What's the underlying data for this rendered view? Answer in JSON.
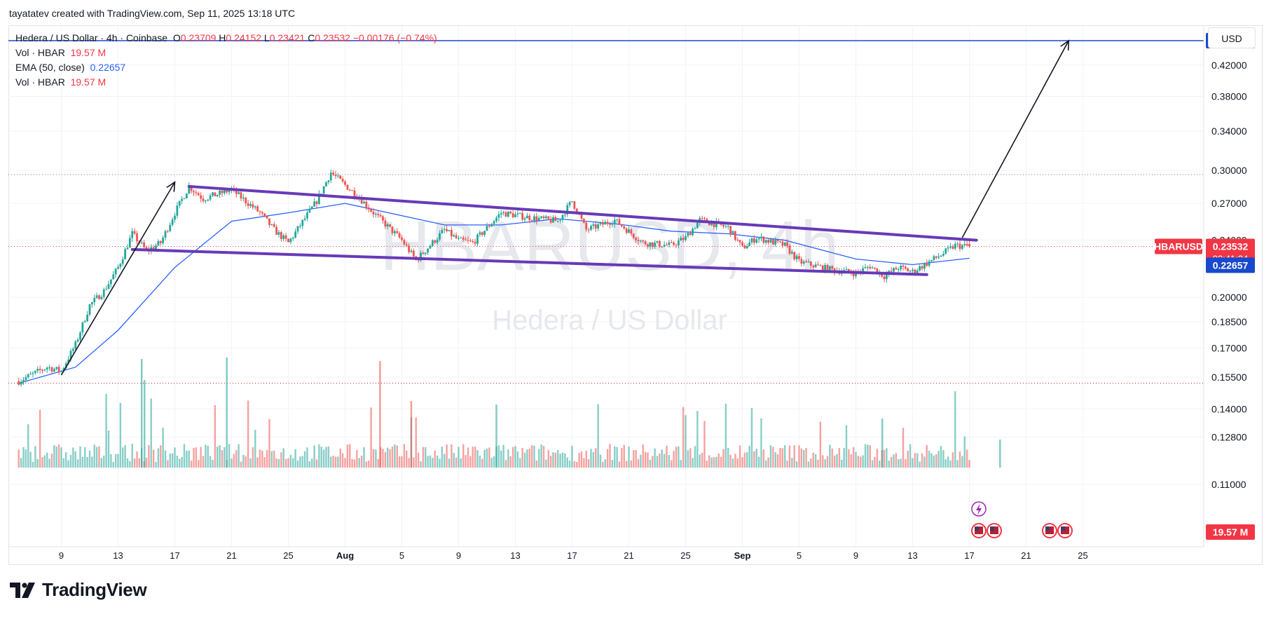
{
  "header": {
    "credit": "tayatatev created with TradingView.com, Sep 11, 2025 13:18 UTC"
  },
  "legend": {
    "symbol": "Hedera / US Dollar · 4h · Coinbase",
    "o_label": "O",
    "o_value": "0.23709",
    "h_label": "H",
    "h_value": "0.24152",
    "l_label": "L",
    "l_value": "0.23421",
    "c_label": "C",
    "c_value": "0.23532",
    "change": "−0.00176 (−0.74%)",
    "vol_label": "Vol · HBAR",
    "vol_value": "19.57 M",
    "ema_label": "EMA (50, close)",
    "ema_value": "0.22657",
    "vol2_label": "Vol · HBAR",
    "vol2_value": "19.57 M"
  },
  "currency_button": "USD",
  "watermark": {
    "symbol": "HBARUSD, 4h",
    "name": "Hedera / US Dollar"
  },
  "price_tags": {
    "target": "0.45411",
    "symbol": "HBARUSD",
    "last": "0.23532",
    "countdown": "02:41:24",
    "ema": "0.22657",
    "volume": "19.57 M"
  },
  "brand": {
    "name": "TradingView"
  },
  "colors": {
    "up": "#26a69a",
    "down": "#ef5350",
    "ema": "#2962ff",
    "channel": "#673ab7",
    "arrow": "#131722",
    "target_line": "#1848cc",
    "vol_up": "#26a69a",
    "vol_down": "#ef5350"
  },
  "chart_data": {
    "type": "candlestick",
    "symbol": "HBARUSD",
    "timeframe": "4h",
    "y_scale": "log",
    "y_ticks": [
      "0.42000",
      "0.38000",
      "0.34000",
      "0.30000",
      "0.27000",
      "0.24000",
      "0.20000",
      "0.18500",
      "0.17000",
      "0.15500",
      "0.14000",
      "0.12800",
      "0.11000"
    ],
    "x_ticks": [
      "9",
      "13",
      "17",
      "21",
      "25",
      "Aug",
      "5",
      "9",
      "13",
      "17",
      "21",
      "25",
      "Sep",
      "5",
      "9",
      "13",
      "17",
      "21",
      "25"
    ],
    "price_path": [
      {
        "date": "Jul 6",
        "close": 0.153
      },
      {
        "date": "Jul 8",
        "close": 0.16
      },
      {
        "date": "Jul 9",
        "close": 0.158
      },
      {
        "date": "Jul 10",
        "close": 0.172
      },
      {
        "date": "Jul 11",
        "close": 0.195
      },
      {
        "date": "Jul 12",
        "close": 0.204
      },
      {
        "date": "Jul 13",
        "close": 0.22
      },
      {
        "date": "Jul 14",
        "close": 0.245
      },
      {
        "date": "Jul 15",
        "close": 0.232
      },
      {
        "date": "Jul 16",
        "close": 0.238
      },
      {
        "date": "Jul 17",
        "close": 0.262
      },
      {
        "date": "Jul 18",
        "close": 0.285
      },
      {
        "date": "Jul 19",
        "close": 0.274
      },
      {
        "date": "Jul 21",
        "close": 0.282
      },
      {
        "date": "Jul 23",
        "close": 0.262
      },
      {
        "date": "Jul 24",
        "close": 0.248
      },
      {
        "date": "Jul 25",
        "close": 0.238
      },
      {
        "date": "Jul 27",
        "close": 0.272
      },
      {
        "date": "Jul 28",
        "close": 0.298
      },
      {
        "date": "Jul 30",
        "close": 0.275
      },
      {
        "date": "Jul 31",
        "close": 0.262
      },
      {
        "date": "Aug 2",
        "close": 0.24
      },
      {
        "date": "Aug 3",
        "close": 0.225
      },
      {
        "date": "Aug 5",
        "close": 0.248
      },
      {
        "date": "Aug 6",
        "close": 0.24
      },
      {
        "date": "Aug 7",
        "close": 0.238
      },
      {
        "date": "Aug 9",
        "close": 0.262
      },
      {
        "date": "Aug 11",
        "close": 0.258
      },
      {
        "date": "Aug 13",
        "close": 0.255
      },
      {
        "date": "Aug 14",
        "close": 0.272
      },
      {
        "date": "Aug 15",
        "close": 0.248
      },
      {
        "date": "Aug 17",
        "close": 0.256
      },
      {
        "date": "Aug 19",
        "close": 0.238
      },
      {
        "date": "Aug 21",
        "close": 0.236
      },
      {
        "date": "Aug 22",
        "close": 0.242
      },
      {
        "date": "Aug 23",
        "close": 0.256
      },
      {
        "date": "Aug 25",
        "close": 0.25
      },
      {
        "date": "Aug 26",
        "close": 0.234
      },
      {
        "date": "Aug 27",
        "close": 0.242
      },
      {
        "date": "Aug 29",
        "close": 0.236
      },
      {
        "date": "Aug 30",
        "close": 0.224
      },
      {
        "date": "Sep 1",
        "close": 0.219
      },
      {
        "date": "Sep 3",
        "close": 0.216
      },
      {
        "date": "Sep 4",
        "close": 0.221
      },
      {
        "date": "Sep 5",
        "close": 0.214
      },
      {
        "date": "Sep 6",
        "close": 0.22
      },
      {
        "date": "Sep 7",
        "close": 0.217
      },
      {
        "date": "Sep 8",
        "close": 0.223
      },
      {
        "date": "Sep 9",
        "close": 0.229
      },
      {
        "date": "Sep 10",
        "close": 0.236
      },
      {
        "date": "Sep 11",
        "close": 0.23532
      }
    ],
    "ema_50": [
      {
        "date": "Jul 6",
        "value": 0.152
      },
      {
        "date": "Jul 10",
        "value": 0.16
      },
      {
        "date": "Jul 13",
        "value": 0.18
      },
      {
        "date": "Jul 17",
        "value": 0.22
      },
      {
        "date": "Jul 21",
        "value": 0.255
      },
      {
        "date": "Jul 25",
        "value": 0.262
      },
      {
        "date": "Jul 29",
        "value": 0.27
      },
      {
        "date": "Aug 5",
        "value": 0.252
      },
      {
        "date": "Aug 9",
        "value": 0.252
      },
      {
        "date": "Aug 13",
        "value": 0.257
      },
      {
        "date": "Aug 17",
        "value": 0.253
      },
      {
        "date": "Aug 21",
        "value": 0.247
      },
      {
        "date": "Aug 25",
        "value": 0.245
      },
      {
        "date": "Aug 29",
        "value": 0.24
      },
      {
        "date": "Sep 3",
        "value": 0.226
      },
      {
        "date": "Sep 7",
        "value": 0.222
      },
      {
        "date": "Sep 11",
        "value": 0.22657
      }
    ],
    "channel_upper": [
      {
        "date": "Jul 18",
        "value": 0.285
      },
      {
        "date": "Sep 11.5",
        "value": 0.24
      }
    ],
    "channel_lower": [
      {
        "date": "Jul 14",
        "value": 0.233
      },
      {
        "date": "Sep 8",
        "value": 0.215
      }
    ],
    "arrow_1": [
      {
        "date": "Jul 9",
        "value": 0.156
      },
      {
        "date": "Jul 17",
        "value": 0.289
      }
    ],
    "arrow_2": [
      {
        "date": "Sep 10.5",
        "value": 0.242
      },
      {
        "date": "Sep 18",
        "value": 0.45411
      }
    ],
    "horizontal_levels": [
      0.45411,
      0.296,
      0.23532,
      0.152
    ]
  }
}
